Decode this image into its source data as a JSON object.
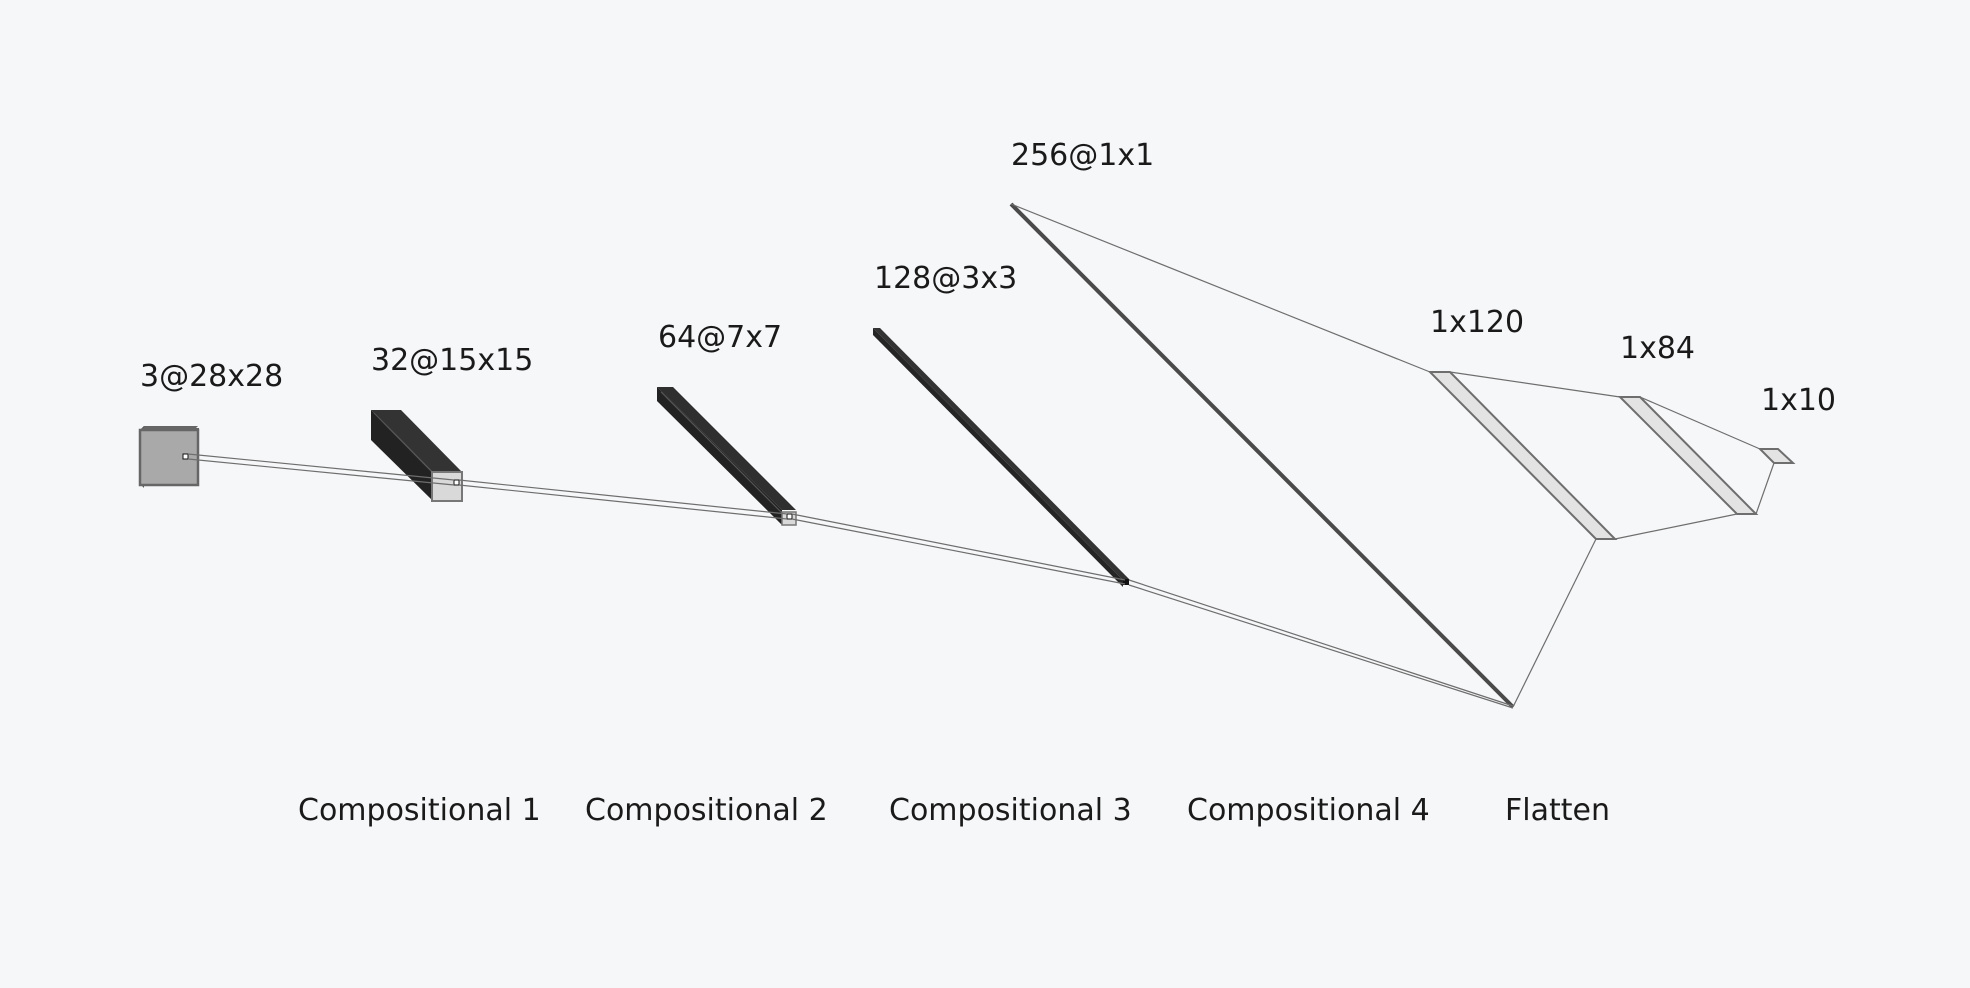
{
  "layers": [
    {
      "id": "input",
      "label": "3@28x28"
    },
    {
      "id": "conv1",
      "label": "32@15x15"
    },
    {
      "id": "conv2",
      "label": "64@7x7"
    },
    {
      "id": "conv3",
      "label": "128@3x3"
    },
    {
      "id": "conv4",
      "label": "256@1x1"
    },
    {
      "id": "fc1",
      "label": "1x120"
    },
    {
      "id": "fc2",
      "label": "1x84"
    },
    {
      "id": "fc3",
      "label": "1x10"
    }
  ],
  "stages": [
    {
      "id": "compositional-1",
      "label": "Compositional 1"
    },
    {
      "id": "compositional-2",
      "label": "Compositional 2"
    },
    {
      "id": "compositional-3",
      "label": "Compositional 3"
    },
    {
      "id": "compositional-4",
      "label": "Compositional 4"
    },
    {
      "id": "flatten",
      "label": "Flatten"
    }
  ],
  "colors": {
    "background": "#f6f7f9",
    "feature_map_dark": "#2a2a2a",
    "feature_map_light": "#d9d9d9",
    "input_map": "#a9a9a9",
    "dense_fill": "#e3e3e3",
    "edge_stroke": "#6e6e6e",
    "text": "#1a1a1a"
  }
}
